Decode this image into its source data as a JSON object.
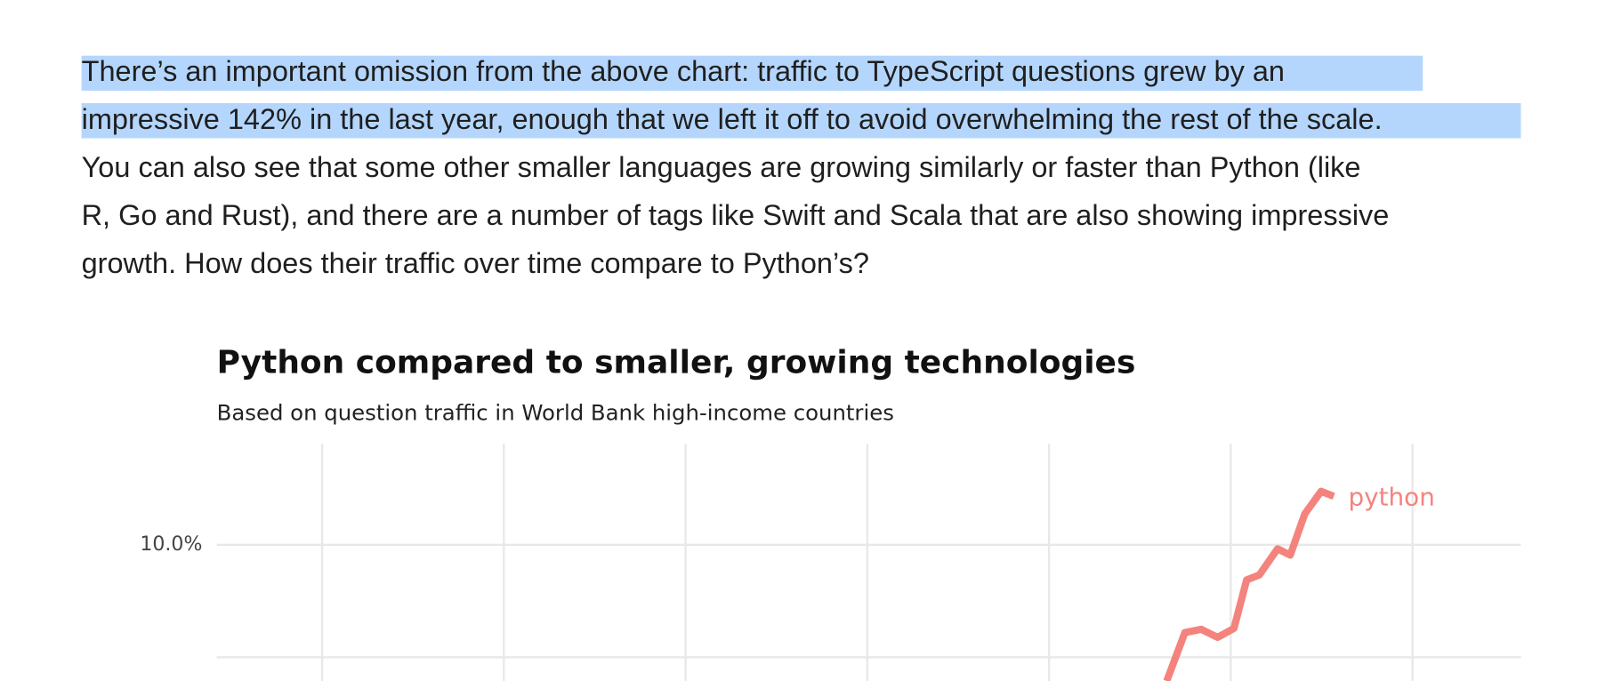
{
  "paragraph": {
    "lines": [
      "There’s an important omission from the above chart: traffic to TypeScript questions grew by an",
      "impressive 142% in the last year, enough that we left it off to avoid overwhelming the rest of the scale.",
      "You can also see that some other smaller languages are growing similarly or faster than Python (like",
      "R, Go and Rust), and there are a number of tags like Swift and Scala that are also showing impressive",
      "growth. How does their traffic over time compare to Python’s?"
    ]
  },
  "chart_data": {
    "type": "line",
    "title": "Python compared to smaller, growing technologies",
    "subtitle": "Based on question traffic in World Bank high-income countries",
    "x": [
      2016.65,
      2016.75,
      2016.84,
      2016.93,
      2017.02,
      2017.09,
      2017.16,
      2017.26,
      2017.33,
      2017.41,
      2017.5,
      2017.57
    ],
    "series": [
      {
        "name": "python",
        "color": "#f4837d",
        "values": [
          6.97,
          8.05,
          8.12,
          7.94,
          8.14,
          9.22,
          9.33,
          9.91,
          9.77,
          10.69,
          11.19,
          11.08
        ]
      }
    ],
    "xlim": [
      2011.42,
      2018.6
    ],
    "ylim": [
      6.97,
      12.25
    ],
    "yticks": [
      {
        "value": 10,
        "label": "10.0%"
      }
    ],
    "grid": true
  }
}
